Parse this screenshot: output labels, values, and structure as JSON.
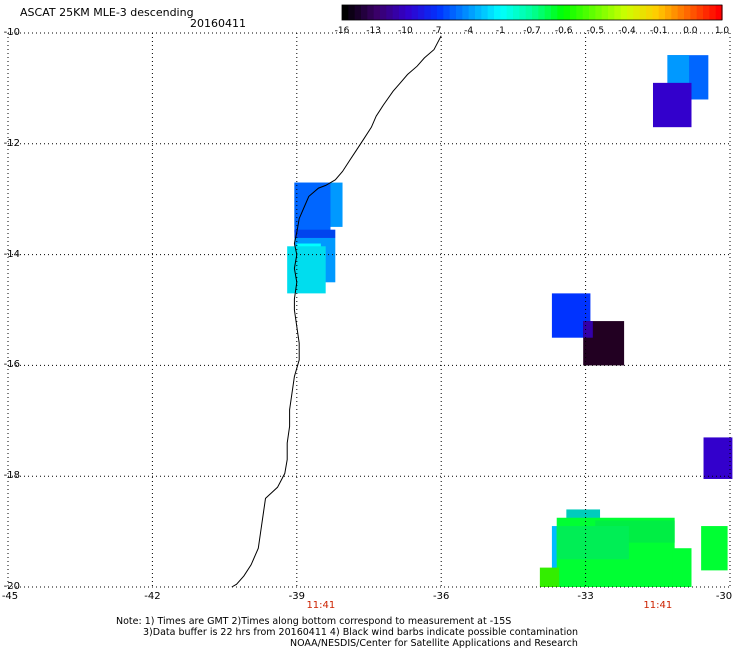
{
  "title": "ASCAT 25KM MLE-3 descending",
  "date": "20160411",
  "colorbar": {
    "labels": [
      "-16",
      "-13",
      "-10",
      "-7",
      "-4",
      "-1",
      "-0.7",
      "-0.6",
      "-0.5",
      "-0.4",
      "-0.1",
      "0.0",
      "1.0"
    ],
    "colors": [
      "#000000",
      "#3a0066",
      "#3300cc",
      "#0033ff",
      "#0099ff",
      "#00ffff",
      "#00ff99",
      "#00ff00",
      "#66ff00",
      "#ccff00",
      "#ffcc00",
      "#ff6600",
      "#ff0000"
    ]
  },
  "axes": {
    "x_ticks": [
      "-45",
      "-42",
      "-39",
      "-36",
      "-33",
      "-30"
    ],
    "y_ticks": [
      "-10",
      "-12",
      "-14",
      "-16",
      "-18",
      "-20"
    ],
    "lon_range": [
      -45,
      -30
    ],
    "lat_range": [
      -20,
      -10
    ]
  },
  "time_labels": [
    {
      "text": "11:41",
      "lon": -38.5
    },
    {
      "text": "11:41",
      "lon": -31.5
    }
  ],
  "cells": [
    {
      "lon0": -31.3,
      "lon1": -30.45,
      "lat0": -10.4,
      "lat1": -11.2,
      "color": "#0066ff"
    },
    {
      "lon0": -31.3,
      "lon1": -30.85,
      "lat0": -10.4,
      "lat1": -11.2,
      "color": "#0099ff"
    },
    {
      "lon0": -31.6,
      "lon1": -30.8,
      "lat0": -10.9,
      "lat1": -11.7,
      "color": "#3300cc"
    },
    {
      "lon0": -39.05,
      "lon1": -38.05,
      "lat0": -12.7,
      "lat1": -13.5,
      "color": "#0099ff"
    },
    {
      "lon0": -39.05,
      "lon1": -38.3,
      "lat0": -12.7,
      "lat1": -13.6,
      "color": "#0066ff"
    },
    {
      "lon0": -39.05,
      "lon1": -38.2,
      "lat0": -13.55,
      "lat1": -13.7,
      "color": "#0044ee"
    },
    {
      "lon0": -39.05,
      "lon1": -38.2,
      "lat0": -13.7,
      "lat1": -14.5,
      "color": "#0099ff"
    },
    {
      "lon0": -39.0,
      "lon1": -38.5,
      "lat0": -13.8,
      "lat1": -14.5,
      "color": "#00ffff"
    },
    {
      "lon0": -39.2,
      "lon1": -38.4,
      "lat0": -13.85,
      "lat1": -14.7,
      "color": "#00ddee"
    },
    {
      "lon0": -33.7,
      "lon1": -32.9,
      "lat0": -14.7,
      "lat1": -15.5,
      "color": "#0033ff"
    },
    {
      "lon0": -33.05,
      "lon1": -32.2,
      "lat0": -15.2,
      "lat1": -16.0,
      "color": "#220022"
    },
    {
      "lon0": -33.05,
      "lon1": -32.85,
      "lat0": -15.2,
      "lat1": -15.5,
      "color": "#3300aa"
    },
    {
      "lon0": -30.55,
      "lon1": -29.95,
      "lat0": -17.3,
      "lat1": -18.05,
      "color": "#3300cc"
    },
    {
      "lon0": -33.4,
      "lon1": -32.7,
      "lat0": -18.6,
      "lat1": -18.8,
      "color": "#00ccbb"
    },
    {
      "lon0": -33.7,
      "lon1": -33.1,
      "lat0": -18.9,
      "lat1": -19.7,
      "color": "#00bbff"
    },
    {
      "lon0": -33.6,
      "lon1": -31.15,
      "lat0": -18.75,
      "lat1": -20.0,
      "color": "#00ff33"
    },
    {
      "lon0": -32.8,
      "lon1": -31.15,
      "lat0": -18.8,
      "lat1": -19.2,
      "color": "#00ee44"
    },
    {
      "lon0": -33.6,
      "lon1": -32.1,
      "lat0": -18.9,
      "lat1": -19.5,
      "color": "#00ee55"
    },
    {
      "lon0": -31.2,
      "lon1": -30.8,
      "lat0": -19.3,
      "lat1": -20.0,
      "color": "#00ff33"
    },
    {
      "lon0": -30.6,
      "lon1": -30.05,
      "lat0": -18.9,
      "lat1": -19.7,
      "color": "#00ff33"
    },
    {
      "lon0": -33.95,
      "lon1": -33.55,
      "lat0": -19.65,
      "lat1": -20.0,
      "color": "#33ee00"
    }
  ],
  "notes": [
    "Note: 1) Times are GMT 2)Times along bottom correspond to measurement at -15S",
    "3)Data buffer is 22 hrs from 20160411 4) Black wind barbs indicate possible contamination",
    "NOAA/NESDIS/Center for Satellite Applications and Research"
  ]
}
